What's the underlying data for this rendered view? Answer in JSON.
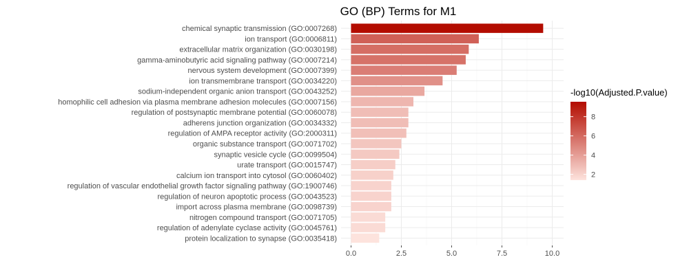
{
  "chart_data": {
    "type": "bar",
    "orientation": "horizontal",
    "title": "GO (BP) Terms for M1",
    "xlabel": "",
    "ylabel": "",
    "xlim": [
      0,
      10
    ],
    "x_ticks": [
      "0.0",
      "2.5",
      "5.0",
      "7.5",
      "10.0"
    ],
    "grid": true,
    "legend_placement": "right",
    "categories": [
      "chemical synaptic transmission (GO:0007268)",
      "ion transport (GO:0006811)",
      "extracellular matrix organization (GO:0030198)",
      "gamma-aminobutyric acid signaling pathway (GO:0007214)",
      "nervous system development (GO:0007399)",
      "ion transmembrane transport (GO:0034220)",
      "sodium-independent organic anion transport (GO:0043252)",
      "homophilic cell adhesion via plasma membrane adhesion molecules (GO:0007156)",
      "regulation of postsynaptic membrane potential (GO:0060078)",
      "adherens junction organization (GO:0034332)",
      "regulation of AMPA receptor activity (GO:2000311)",
      "organic substance transport (GO:0071702)",
      "synaptic vesicle cycle (GO:0099504)",
      "urate transport (GO:0015747)",
      "calcium ion transport into cytosol (GO:0060402)",
      "regulation of vascular endothelial growth factor signaling pathway (GO:1900746)",
      "regulation of neuron apoptotic process (GO:0043523)",
      "import across plasma membrane (GO:0098739)",
      "nitrogen compound transport (GO:0071705)",
      "regulation of adenylate cyclase activity (GO:0045761)",
      "protein localization to synapse (GO:0035418)"
    ],
    "values": [
      9.55,
      6.35,
      5.85,
      5.7,
      5.25,
      4.55,
      3.65,
      3.1,
      2.85,
      2.85,
      2.75,
      2.5,
      2.4,
      2.2,
      2.1,
      2.0,
      2.0,
      2.0,
      1.7,
      1.7,
      1.4
    ],
    "color_legend": {
      "title": "-log10(Adjusted.P.value)",
      "ticks": [
        "2",
        "4",
        "6",
        "8"
      ],
      "tick_values": [
        2,
        4,
        6,
        8
      ],
      "range": [
        1.4,
        9.55
      ],
      "low_color": "#fde3dd",
      "high_color": "#b30c00"
    }
  }
}
